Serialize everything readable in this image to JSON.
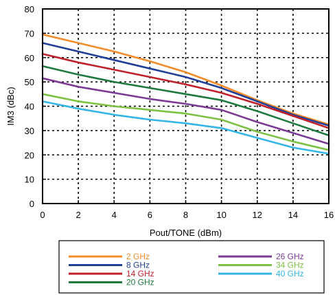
{
  "chart_data": {
    "type": "line",
    "title": "",
    "xlabel": "Pout/TONE (dBm)",
    "ylabel": "IM3 (dBc)",
    "xlim": [
      0,
      16
    ],
    "ylim": [
      0,
      80
    ],
    "xticks": [
      0,
      2,
      4,
      6,
      8,
      10,
      12,
      14,
      16
    ],
    "yticks": [
      0,
      10,
      20,
      30,
      40,
      50,
      60,
      70,
      80
    ],
    "grid": true,
    "legend_position": "bottom",
    "series": [
      {
        "name": "2 GHz",
        "color": "#f28c28",
        "x": [
          0,
          2,
          4,
          6,
          8,
          10,
          12,
          14,
          16
        ],
        "y": [
          69.5,
          66,
          62.5,
          58.5,
          54,
          48.5,
          42.5,
          37,
          32.5
        ]
      },
      {
        "name": "8 GHz",
        "color": "#1f3f99",
        "x": [
          0,
          2,
          4,
          6,
          8,
          10,
          12,
          14,
          16
        ],
        "y": [
          66,
          62.5,
          59,
          55.5,
          52,
          47.5,
          42,
          36.5,
          32
        ]
      },
      {
        "name": "14 GHz",
        "color": "#c0202a",
        "x": [
          0,
          2,
          4,
          6,
          8,
          10,
          12,
          14,
          16
        ],
        "y": [
          61.5,
          58,
          55,
          52,
          49,
          45.5,
          41,
          36,
          31
        ]
      },
      {
        "name": "20 GHz",
        "color": "#1e7a3c",
        "x": [
          0,
          2,
          4,
          6,
          8,
          10,
          12,
          14,
          16
        ],
        "y": [
          56.5,
          53,
          50,
          47.5,
          45,
          42.5,
          38,
          33,
          28
        ]
      },
      {
        "name": "26 GHz",
        "color": "#7b3a96",
        "x": [
          0,
          2,
          4,
          6,
          8,
          10,
          12,
          14,
          16
        ],
        "y": [
          51.5,
          48,
          45.5,
          43,
          41,
          38.5,
          33.5,
          29,
          24.5
        ]
      },
      {
        "name": "34 GHz",
        "color": "#7cc142",
        "x": [
          0,
          2,
          4,
          6,
          8,
          10,
          12,
          14,
          16
        ],
        "y": [
          45,
          42,
          40,
          38.5,
          37,
          34.5,
          29.5,
          25.5,
          22
        ]
      },
      {
        "name": "40 GHz",
        "color": "#33b5e5",
        "x": [
          0,
          2,
          4,
          6,
          8,
          10,
          12,
          14,
          16
        ],
        "y": [
          42,
          39,
          36.5,
          34.5,
          33,
          31,
          27,
          23,
          20.5
        ]
      }
    ]
  }
}
